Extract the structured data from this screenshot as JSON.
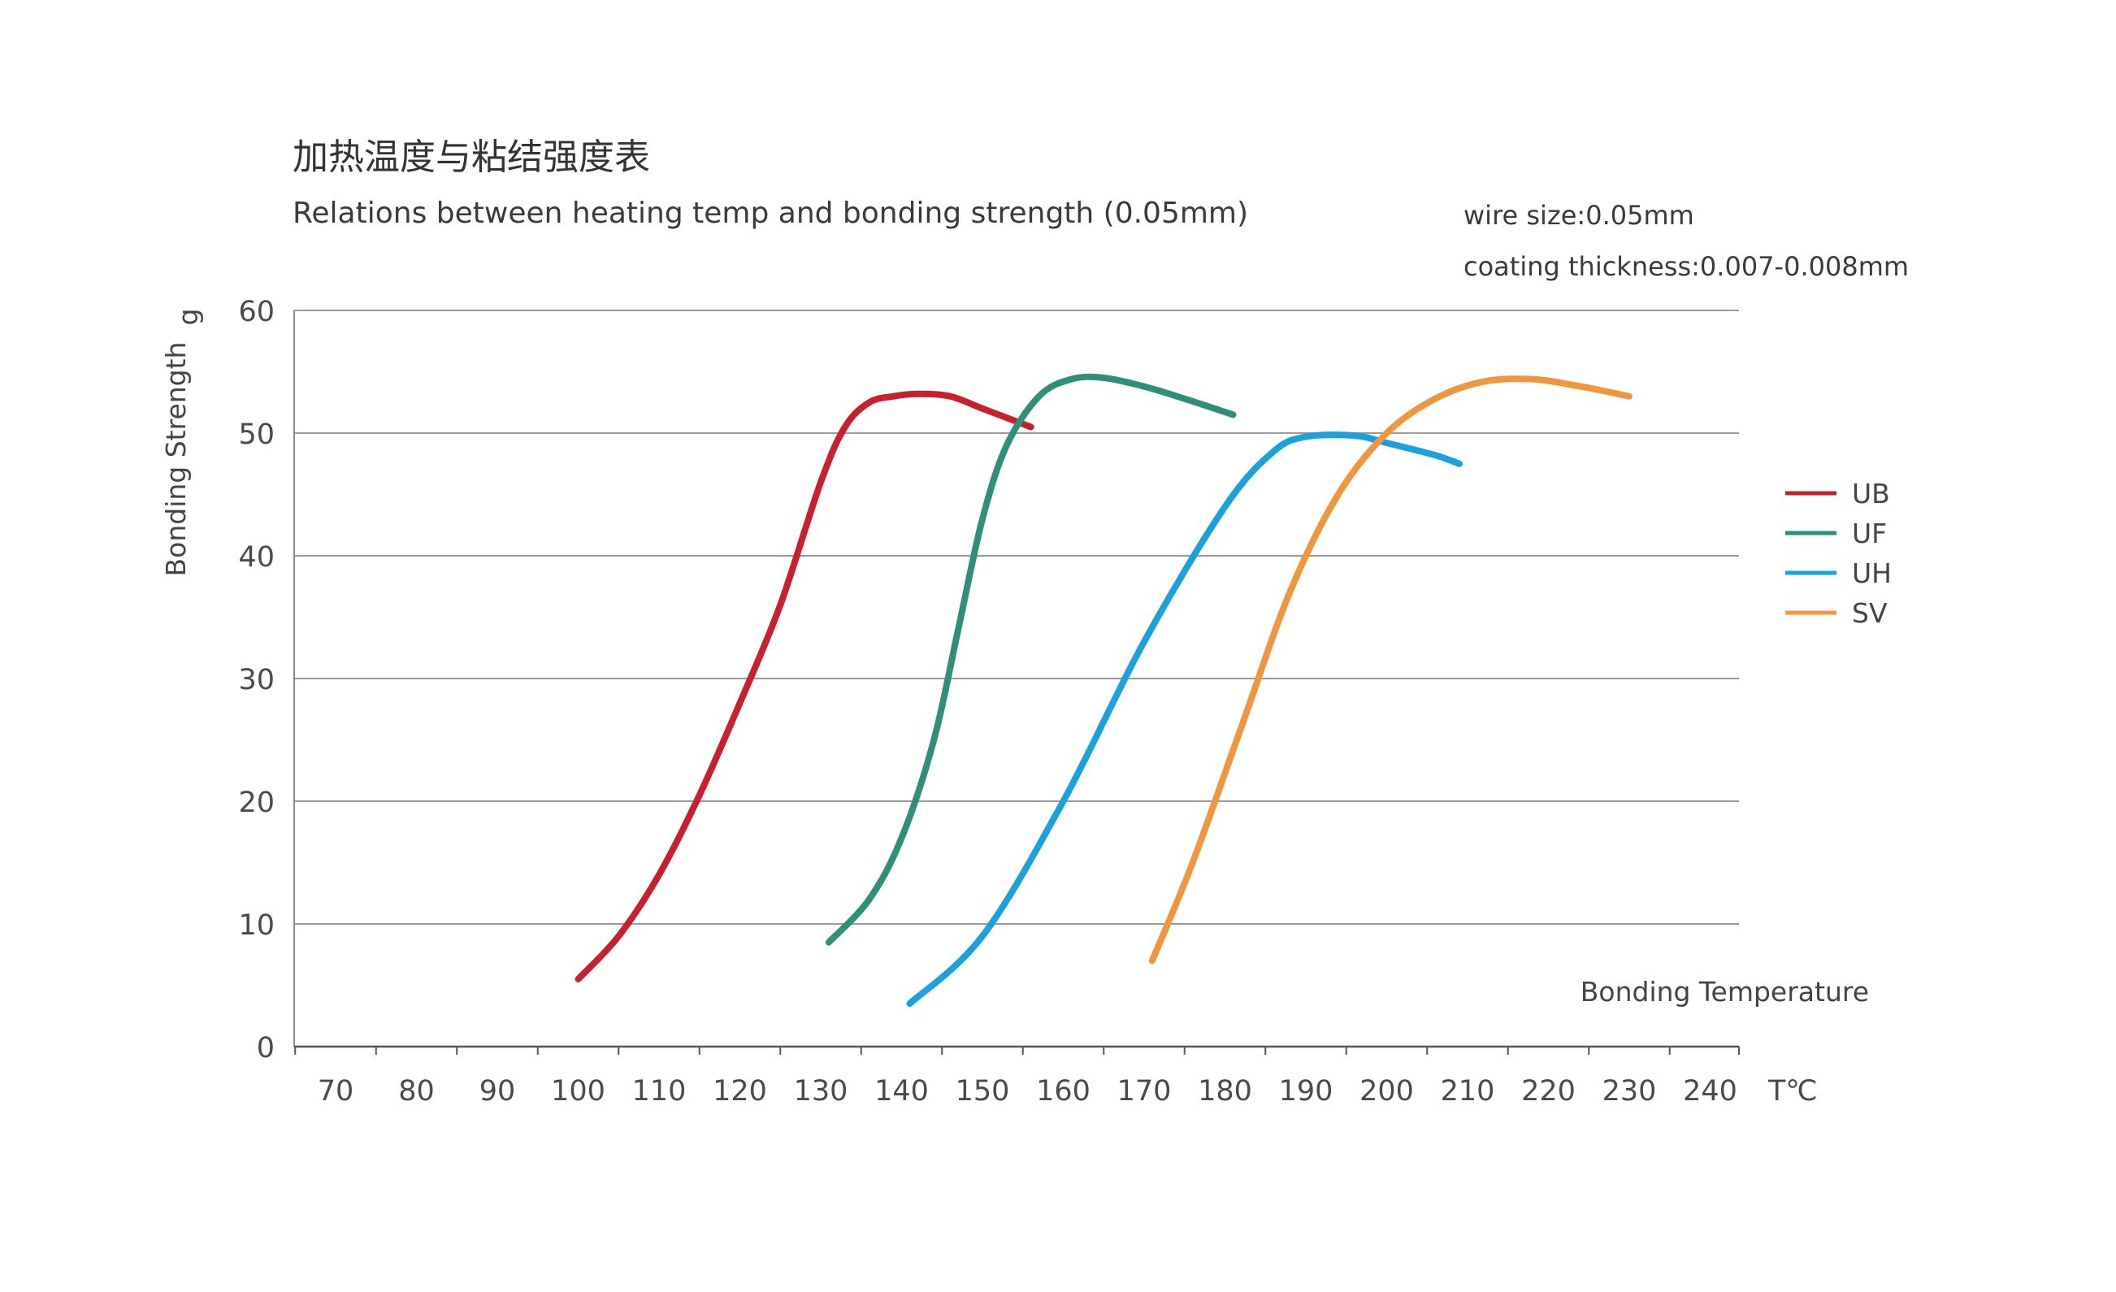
{
  "chart_data": {
    "type": "line",
    "title": "加热温度与粘结强度表",
    "subtitle": "Relations between heating temp and bonding strength (0.05mm)",
    "notes": [
      "wire size:0.05mm",
      "coating thickness:0.007-0.008mm"
    ],
    "xlabel": "Bonding Temperature",
    "xunit": "T℃",
    "ylabel": "Bonding Strength",
    "yunit": "g",
    "xlim": [
      65,
      245
    ],
    "ylim": [
      0,
      60
    ],
    "xticks": [
      70,
      80,
      90,
      100,
      110,
      120,
      130,
      140,
      150,
      160,
      170,
      180,
      190,
      200,
      210,
      220,
      230,
      240
    ],
    "yticks": [
      0,
      10,
      20,
      30,
      40,
      50,
      60
    ],
    "grid": "horizontal",
    "legend_position": "right",
    "series": [
      {
        "name": "UB",
        "color": "#c8202f",
        "x": [
          100,
          105,
          110,
          115,
          120,
          125,
          130,
          133,
          136,
          139,
          142,
          146,
          150,
          154,
          156
        ],
        "y": [
          5.5,
          9,
          14,
          20.5,
          28,
          36,
          46,
          50.5,
          52.5,
          53,
          53.2,
          53,
          52,
          51,
          50.5
        ]
      },
      {
        "name": "UF",
        "color": "#2f8f78",
        "x": [
          131,
          136,
          140,
          144,
          147,
          150,
          153,
          157,
          161,
          165,
          170,
          175,
          181
        ],
        "y": [
          8.5,
          12,
          17,
          25,
          34,
          43,
          49,
          53,
          54.4,
          54.5,
          53.8,
          52.8,
          51.5
        ]
      },
      {
        "name": "UH",
        "color": "#1ba1dc",
        "x": [
          141,
          150,
          160,
          170,
          180,
          186,
          190,
          196,
          200,
          206,
          209
        ],
        "y": [
          3.5,
          9,
          20,
          33,
          44,
          48.5,
          49.7,
          49.8,
          49.2,
          48.2,
          47.5
        ]
      },
      {
        "name": "SV",
        "color": "#f0963e",
        "x": [
          171,
          176,
          182,
          188,
          194,
          200,
          206,
          212,
          218,
          224,
          230
        ],
        "y": [
          7,
          15,
          26,
          37,
          45,
          50,
          52.8,
          54.2,
          54.4,
          53.8,
          53
        ]
      }
    ]
  }
}
